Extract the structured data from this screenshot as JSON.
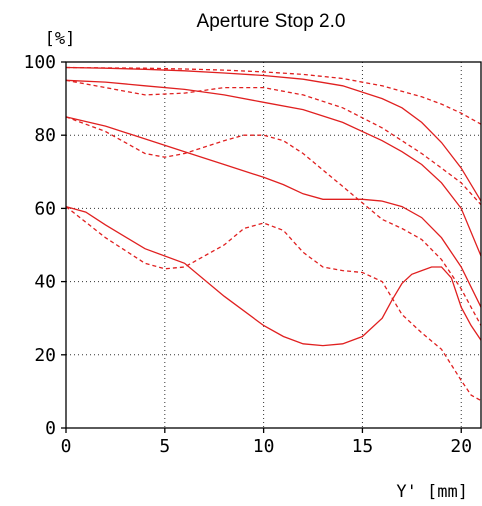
{
  "chart_data": {
    "type": "line",
    "title": "Aperture Stop 2.0",
    "ylabel": "[%]",
    "xlabel": "Y' [mm]",
    "xlim": [
      0,
      21
    ],
    "ylim": [
      0,
      100
    ],
    "xticks": [
      0,
      5,
      10,
      15,
      20
    ],
    "yticks": [
      0,
      20,
      40,
      60,
      80,
      100
    ],
    "grid": true,
    "line_color": "#e02020",
    "series": [
      {
        "style": "solid",
        "x": [
          0,
          2,
          4,
          6,
          8,
          10,
          12,
          14,
          16,
          17,
          18,
          19,
          20,
          21
        ],
        "y": [
          98.5,
          98.3,
          98,
          97.6,
          97,
          96.3,
          95.3,
          93.5,
          90,
          87.5,
          83.5,
          78,
          71,
          62
        ]
      },
      {
        "style": "dashed",
        "x": [
          0,
          2,
          4,
          6,
          8,
          10,
          12,
          14,
          16,
          18,
          19,
          20,
          21
        ],
        "y": [
          98.5,
          98.4,
          98.3,
          98.1,
          97.8,
          97.3,
          96.6,
          95.5,
          93.5,
          90.5,
          88.5,
          86,
          83
        ]
      },
      {
        "style": "solid",
        "x": [
          0,
          2,
          4,
          6,
          8,
          10,
          12,
          14,
          16,
          17,
          18,
          19,
          20,
          21
        ],
        "y": [
          95,
          94.5,
          93.5,
          92.5,
          91,
          89,
          87,
          83.5,
          78.5,
          75.5,
          72,
          67,
          60,
          47
        ]
      },
      {
        "style": "dashed",
        "x": [
          0,
          2,
          4,
          6,
          8,
          10,
          12,
          14,
          16,
          18,
          19,
          20,
          21
        ],
        "y": [
          95,
          93,
          91,
          91.5,
          93,
          93,
          91,
          87.5,
          82,
          75,
          71,
          67,
          61
        ]
      },
      {
        "style": "solid",
        "x": [
          0,
          2,
          4,
          6,
          8,
          10,
          11,
          12,
          13,
          14,
          15,
          16,
          17,
          18,
          19,
          20,
          21
        ],
        "y": [
          85,
          82.5,
          79,
          75.5,
          72,
          68.5,
          66.5,
          64,
          62.5,
          62.5,
          62.5,
          62,
          60.5,
          57.5,
          52,
          44,
          33
        ]
      },
      {
        "style": "dashed",
        "x": [
          0,
          2,
          4,
          5,
          6,
          8,
          9,
          10,
          11,
          12,
          13,
          14,
          15,
          16,
          17,
          18,
          19,
          20,
          21
        ],
        "y": [
          85,
          81,
          75,
          74,
          75,
          78.5,
          80,
          80,
          78.5,
          75,
          70.5,
          66,
          61.5,
          57,
          54.5,
          51.5,
          46,
          38,
          28
        ]
      },
      {
        "style": "solid",
        "x": [
          0,
          1,
          2,
          4,
          6,
          8,
          10,
          11,
          12,
          13,
          14,
          15,
          16,
          16.5,
          17,
          17.5,
          18,
          18.5,
          19,
          19.5,
          20,
          20.5,
          21
        ],
        "y": [
          60.5,
          59,
          55.5,
          49,
          45,
          36,
          28,
          25,
          23,
          22.5,
          23,
          25,
          30,
          35,
          39.5,
          42,
          43,
          44,
          44,
          41,
          33,
          28,
          24
        ]
      },
      {
        "style": "dashed",
        "x": [
          0,
          2,
          4,
          5,
          6,
          8,
          9,
          10,
          11,
          12,
          13,
          14,
          15,
          16,
          17,
          18,
          19,
          20,
          20.5,
          21
        ],
        "y": [
          60.5,
          52,
          45,
          43.5,
          44,
          50,
          54.5,
          56,
          54,
          48,
          44,
          43,
          42.5,
          40,
          31,
          26,
          21.5,
          13,
          9,
          7.5
        ]
      }
    ]
  }
}
